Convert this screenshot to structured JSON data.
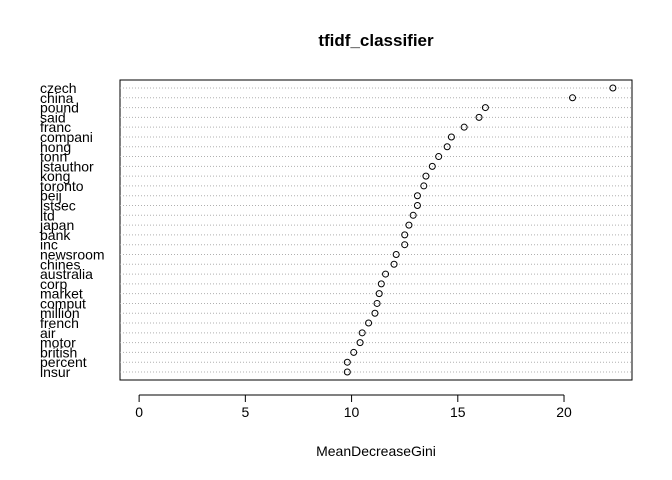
{
  "chart_data": {
    "type": "scatter",
    "title": "tfidf_classifier",
    "xlabel": "MeanDecreaseGini",
    "ylabel": "",
    "xlim": [
      -0.9,
      23.2
    ],
    "xticks": [
      0,
      5,
      10,
      15,
      20
    ],
    "grid": "dotted-horizontal",
    "legend": "none",
    "point_style": "open-circle",
    "categories": [
      "czech",
      "china",
      "pound",
      "said",
      "franc",
      "compani",
      "hong",
      "tonn",
      "lstauthor",
      "kong",
      "toronto",
      "beij",
      "lstsec",
      "ltd",
      "japan",
      "bank",
      "inc",
      "newsroom",
      "chines",
      "australia",
      "corp",
      "market",
      "comput",
      "million",
      "french",
      "air",
      "motor",
      "british",
      "percent",
      "insur"
    ],
    "values": [
      22.3,
      20.4,
      16.3,
      16.0,
      15.3,
      14.7,
      14.5,
      14.1,
      13.8,
      13.5,
      13.4,
      13.1,
      13.1,
      12.9,
      12.7,
      12.5,
      12.5,
      12.1,
      12.0,
      11.6,
      11.4,
      11.3,
      11.2,
      11.1,
      10.8,
      10.5,
      10.4,
      10.1,
      9.8,
      9.8
    ]
  }
}
